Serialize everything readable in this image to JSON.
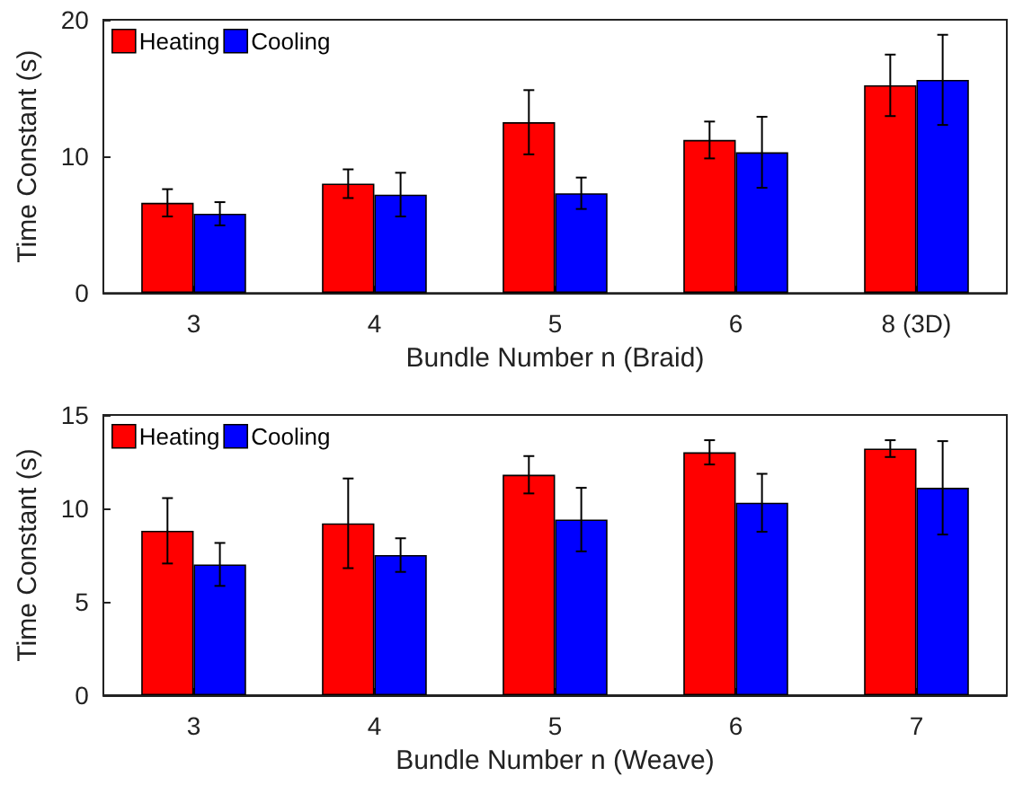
{
  "chart_data": [
    {
      "type": "bar",
      "xlabel": "Bundle Number n (Braid)",
      "ylabel": "Time Constant (s)",
      "categories": [
        "3",
        "4",
        "5",
        "6",
        "8 (3D)"
      ],
      "series": [
        {
          "name": "Heating",
          "color": "#ff0000",
          "values": [
            6.6,
            8.0,
            12.5,
            11.2,
            15.2
          ],
          "errors": [
            1.0,
            1.05,
            2.35,
            1.35,
            2.25
          ]
        },
        {
          "name": "Cooling",
          "color": "#0000ff",
          "values": [
            5.8,
            7.2,
            7.3,
            10.3,
            15.6
          ],
          "errors": [
            0.85,
            1.6,
            1.15,
            2.6,
            3.3
          ]
        }
      ],
      "ylim": [
        0,
        20
      ],
      "yticks": [
        0,
        10,
        20
      ],
      "grid": false,
      "legend": "top left"
    },
    {
      "type": "bar",
      "xlabel": "Bundle Number n (Weave)",
      "ylabel": "Time Constant (s)",
      "categories": [
        "3",
        "4",
        "5",
        "6",
        "7"
      ],
      "series": [
        {
          "name": "Heating",
          "color": "#ff0000",
          "values": [
            8.8,
            9.2,
            11.8,
            13.0,
            13.2
          ],
          "errors": [
            1.75,
            2.4,
            1.0,
            0.65,
            0.45
          ]
        },
        {
          "name": "Cooling",
          "color": "#0000ff",
          "values": [
            7.0,
            7.5,
            9.4,
            10.3,
            11.1
          ],
          "errors": [
            1.15,
            0.9,
            1.7,
            1.55,
            2.5
          ]
        }
      ],
      "ylim": [
        0,
        15
      ],
      "yticks": [
        0,
        5,
        10,
        15
      ],
      "grid": false,
      "legend": "top left"
    }
  ]
}
